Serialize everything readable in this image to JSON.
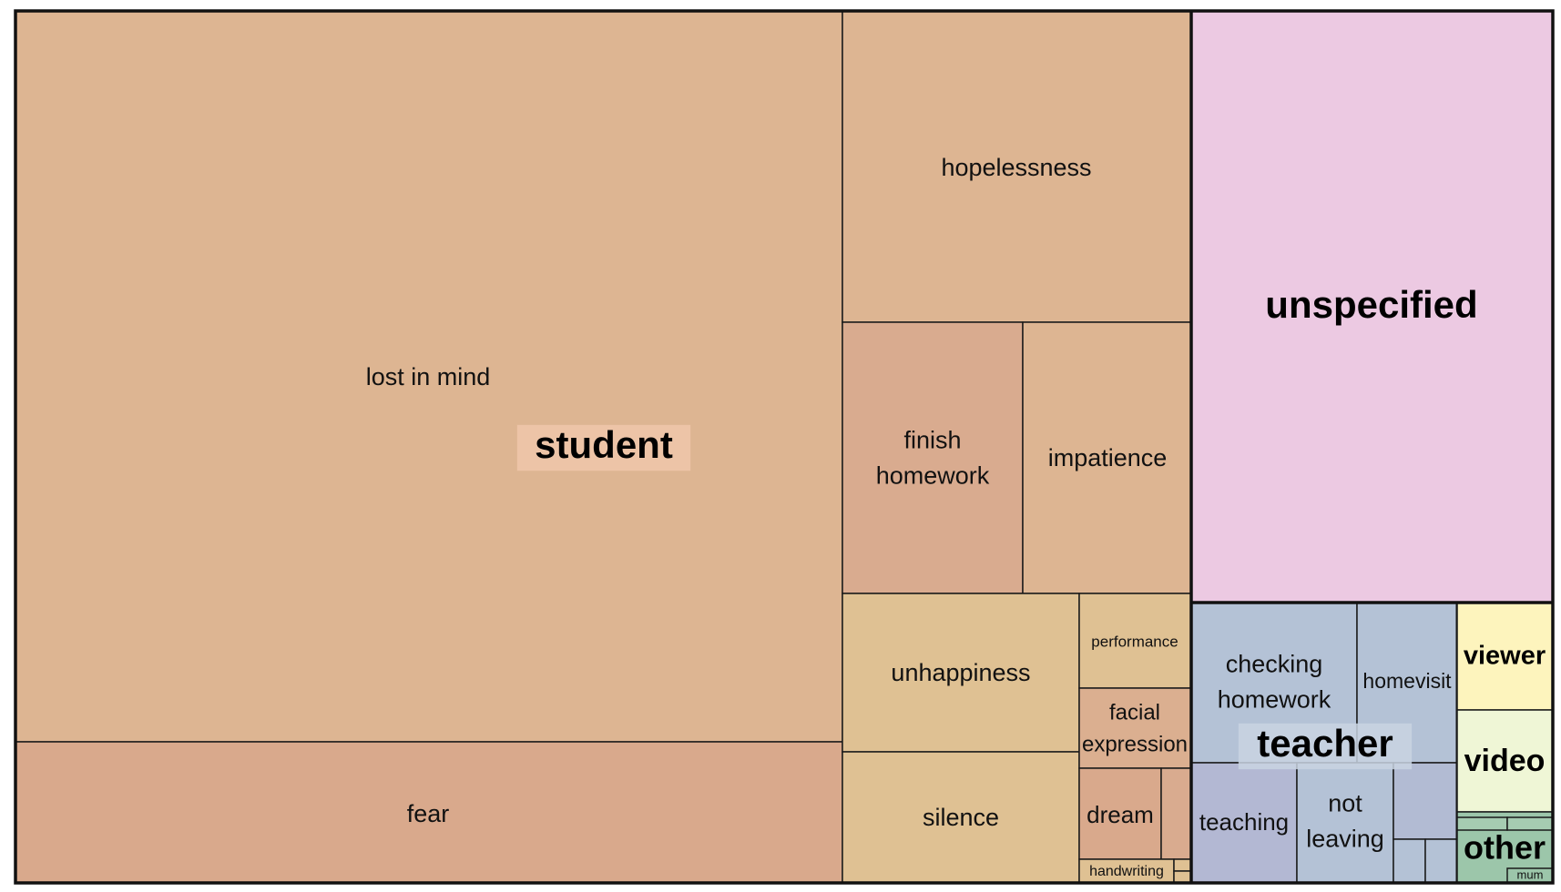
{
  "chart_data": {
    "type": "treemap",
    "groups": [
      {
        "name": "student",
        "color": "#ddb592",
        "children": [
          {
            "label": "lost in mind",
            "color": "#ddb592"
          },
          {
            "label": "fear",
            "color": "#d9a98c"
          },
          {
            "label": "hopelessness",
            "color": "#ddb592"
          },
          {
            "label": "finish homework",
            "color": "#d9ab8f"
          },
          {
            "label": "impatience",
            "color": "#ddb592"
          },
          {
            "label": "unhappiness",
            "color": "#dfc193"
          },
          {
            "label": "silence",
            "color": "#dfc193"
          },
          {
            "label": "performance",
            "color": "#dfc193"
          },
          {
            "label": "facial expression",
            "color": "#dbaf90"
          },
          {
            "label": "dream",
            "color": "#d9a98c"
          },
          {
            "label": "handwriting",
            "color": "#dfc193"
          }
        ]
      },
      {
        "name": "unspecified",
        "color": "#ecc9e2",
        "children": []
      },
      {
        "name": "teacher",
        "color": "#b4c2d6",
        "children": [
          {
            "label": "checking homework",
            "color": "#b4c2d6"
          },
          {
            "label": "homevisit",
            "color": "#b4c2d6"
          },
          {
            "label": "teaching",
            "color": "#b3b8d3"
          },
          {
            "label": "not leaving",
            "color": "#b4c2d6"
          }
        ]
      },
      {
        "name": "viewer",
        "color": "#fdf4bd",
        "children": []
      },
      {
        "name": "video",
        "color": "#eff6d6",
        "children": []
      },
      {
        "name": "other",
        "color": "#9cc6aa",
        "children": [
          {
            "label": "mum",
            "color": "#9cc6aa"
          }
        ]
      }
    ]
  }
}
